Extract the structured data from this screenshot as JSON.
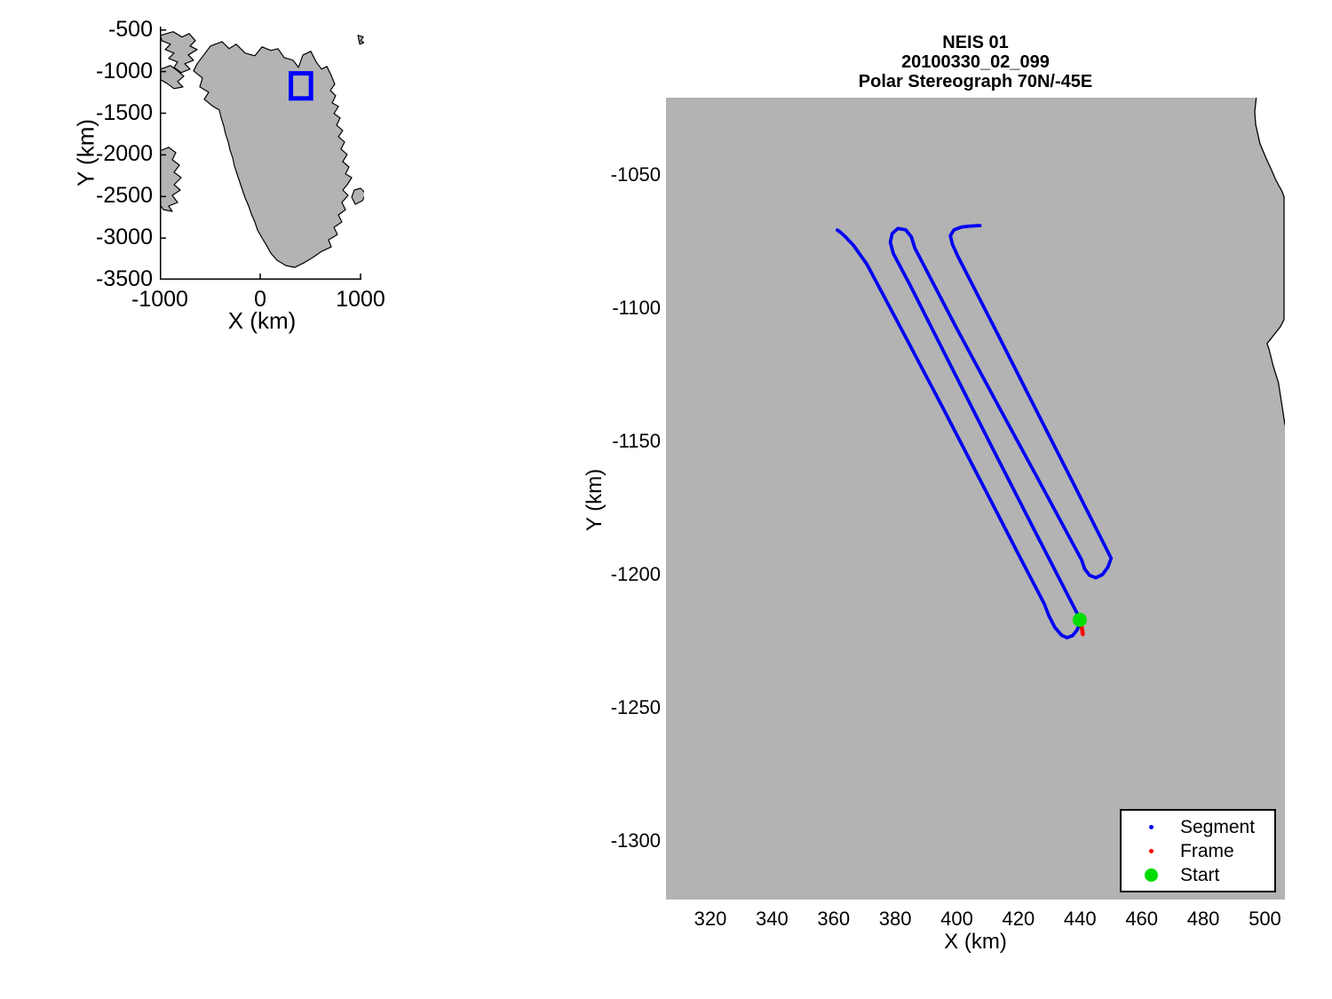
{
  "figure": {
    "background": "#ffffff",
    "land_color": "#b3b3b3",
    "coast_color": "#000000",
    "ocean_color": "#ffffff"
  },
  "chart_data": [
    {
      "type": "line",
      "id": "overview-map",
      "xlabel": "X (km)",
      "ylabel": "Y (km)",
      "xlim": [
        -1000,
        1035
      ],
      "ylim": [
        -3500,
        -460
      ],
      "xticks": [
        -1000,
        0,
        1000
      ],
      "yticks": [
        -500,
        -1000,
        -1500,
        -2000,
        -2500,
        -3000,
        -3500
      ],
      "grid": false,
      "highlight_box": {
        "x": [
          306,
          506
        ],
        "y": [
          -1322,
          -1021
        ],
        "color": "#0000ff",
        "stroke_px": 5
      },
      "land_polygons": {
        "greenland": [
          [
            -495,
            -692
          ],
          [
            -380,
            -640
          ],
          [
            -310,
            -724
          ],
          [
            -239,
            -671
          ],
          [
            -150,
            -778
          ],
          [
            -53,
            -810
          ],
          [
            18,
            -703
          ],
          [
            106,
            -746
          ],
          [
            177,
            -724
          ],
          [
            239,
            -831
          ],
          [
            327,
            -863
          ],
          [
            381,
            -950
          ],
          [
            425,
            -800
          ],
          [
            504,
            -756
          ],
          [
            558,
            -884
          ],
          [
            611,
            -970
          ],
          [
            664,
            -938
          ],
          [
            708,
            -1045
          ],
          [
            743,
            -1152
          ],
          [
            699,
            -1226
          ],
          [
            752,
            -1290
          ],
          [
            717,
            -1376
          ],
          [
            779,
            -1419
          ],
          [
            735,
            -1504
          ],
          [
            796,
            -1557
          ],
          [
            761,
            -1643
          ],
          [
            823,
            -1707
          ],
          [
            779,
            -1782
          ],
          [
            841,
            -1846
          ],
          [
            805,
            -1931
          ],
          [
            867,
            -1995
          ],
          [
            823,
            -2081
          ],
          [
            885,
            -2145
          ],
          [
            850,
            -2230
          ],
          [
            912,
            -2273
          ],
          [
            867,
            -2359
          ],
          [
            823,
            -2423
          ],
          [
            876,
            -2487
          ],
          [
            814,
            -2572
          ],
          [
            850,
            -2658
          ],
          [
            779,
            -2722
          ],
          [
            814,
            -2807
          ],
          [
            735,
            -2871
          ],
          [
            770,
            -2957
          ],
          [
            681,
            -3021
          ],
          [
            708,
            -3106
          ],
          [
            611,
            -3160
          ],
          [
            522,
            -3234
          ],
          [
            434,
            -3298
          ],
          [
            345,
            -3352
          ],
          [
            257,
            -3330
          ],
          [
            168,
            -3266
          ],
          [
            106,
            -3181
          ],
          [
            62,
            -3085
          ],
          [
            18,
            -2999
          ],
          [
            -27,
            -2903
          ],
          [
            -53,
            -2807
          ],
          [
            -88,
            -2711
          ],
          [
            -115,
            -2615
          ],
          [
            -150,
            -2519
          ],
          [
            -177,
            -2423
          ],
          [
            -204,
            -2327
          ],
          [
            -230,
            -2231
          ],
          [
            -257,
            -2134
          ],
          [
            -274,
            -2038
          ],
          [
            -301,
            -1942
          ],
          [
            -319,
            -1846
          ],
          [
            -345,
            -1750
          ],
          [
            -363,
            -1654
          ],
          [
            -389,
            -1557
          ],
          [
            -407,
            -1461
          ],
          [
            -469,
            -1419
          ],
          [
            -558,
            -1333
          ],
          [
            -513,
            -1248
          ],
          [
            -602,
            -1184
          ],
          [
            -575,
            -1077
          ],
          [
            -664,
            -991
          ],
          [
            -628,
            -906
          ],
          [
            -575,
            -820
          ]
        ],
        "canada_north": [
          [
            -991,
            -564
          ],
          [
            -867,
            -521
          ],
          [
            -779,
            -585
          ],
          [
            -708,
            -543
          ],
          [
            -646,
            -628
          ],
          [
            -699,
            -692
          ],
          [
            -628,
            -735
          ],
          [
            -717,
            -799
          ],
          [
            -664,
            -863
          ],
          [
            -752,
            -906
          ],
          [
            -699,
            -970
          ],
          [
            -788,
            -1013
          ],
          [
            -858,
            -949
          ],
          [
            -823,
            -884
          ],
          [
            -912,
            -842
          ],
          [
            -858,
            -778
          ],
          [
            -947,
            -735
          ],
          [
            -894,
            -671
          ],
          [
            -982,
            -628
          ]
        ],
        "canada_mid": [
          [
            -991,
            -970
          ],
          [
            -894,
            -927
          ],
          [
            -823,
            -991
          ],
          [
            -761,
            -1055
          ],
          [
            -823,
            -1119
          ],
          [
            -770,
            -1184
          ],
          [
            -858,
            -1205
          ],
          [
            -929,
            -1141
          ],
          [
            -991,
            -1098
          ]
        ],
        "baffin": [
          [
            -1000,
            -1953
          ],
          [
            -912,
            -1910
          ],
          [
            -841,
            -1974
          ],
          [
            -876,
            -2059
          ],
          [
            -805,
            -2124
          ],
          [
            -858,
            -2209
          ],
          [
            -788,
            -2273
          ],
          [
            -858,
            -2359
          ],
          [
            -796,
            -2423
          ],
          [
            -876,
            -2487
          ],
          [
            -823,
            -2572
          ],
          [
            -912,
            -2615
          ],
          [
            -876,
            -2679
          ],
          [
            -965,
            -2658
          ],
          [
            -1000,
            -2594
          ]
        ],
        "svalbard": [
          [
            974,
            -564
          ],
          [
            1027,
            -585
          ],
          [
            1000,
            -628
          ],
          [
            1035,
            -650
          ],
          [
            992,
            -671
          ]
        ],
        "iceland": [
          [
            912,
            -2509
          ],
          [
            938,
            -2423
          ],
          [
            1000,
            -2401
          ],
          [
            1053,
            -2465
          ],
          [
            1018,
            -2551
          ],
          [
            947,
            -2594
          ]
        ]
      }
    },
    {
      "type": "scatter",
      "id": "flight-track",
      "title_lines": [
        "NEIS 01",
        "20100330_02_099",
        "Polar Stereograph 70N/-45E"
      ],
      "xlabel": "X (km)",
      "ylabel": "Y (km)",
      "xlim": [
        305.6,
        506.5
      ],
      "ylim": [
        -1322,
        -1021
      ],
      "xticks": [
        320,
        340,
        360,
        380,
        400,
        420,
        440,
        460,
        480,
        500
      ],
      "yticks": [
        -1050,
        -1100,
        -1150,
        -1200,
        -1250,
        -1300
      ],
      "grid": false,
      "legend_position": "bottom-right",
      "coastline": [
        [
          497.2,
          -1021
        ],
        [
          496.7,
          -1026.3
        ],
        [
          497.0,
          -1031
        ],
        [
          498.4,
          -1038.3
        ],
        [
          500.4,
          -1043.7
        ],
        [
          502.1,
          -1048
        ],
        [
          503.6,
          -1052
        ],
        [
          505.6,
          -1056.3
        ],
        [
          506.2,
          -1058.3
        ],
        [
          506.2,
          -1104.3
        ],
        [
          505.0,
          -1107
        ],
        [
          500.7,
          -1113.3
        ],
        [
          501.3,
          -1115.3
        ],
        [
          502.7,
          -1121.7
        ],
        [
          504.4,
          -1128
        ],
        [
          506.5,
          -1143.7
        ],
        [
          507.5,
          -1146.5
        ]
      ],
      "series": [
        {
          "name": "Segment",
          "color": "#0000f2",
          "stroke_px": 3.8,
          "legend_marker_px": 5,
          "points": [
            [
              361.2,
              -1070.7
            ],
            [
              362.2,
              -1071.5
            ],
            [
              363.9,
              -1073.3
            ],
            [
              366.5,
              -1076.5
            ],
            [
              370.8,
              -1083.5
            ],
            [
              383.0,
              -1110.0
            ],
            [
              395.5,
              -1137.5
            ],
            [
              408.0,
              -1165.5
            ],
            [
              420.5,
              -1193.5
            ],
            [
              428.4,
              -1211.0
            ],
            [
              429.9,
              -1215.5
            ],
            [
              431.8,
              -1219.8
            ],
            [
              434.0,
              -1222.8
            ],
            [
              435.8,
              -1223.7
            ],
            [
              437.6,
              -1222.9
            ],
            [
              439.0,
              -1220.9
            ],
            [
              439.9,
              -1218.3
            ],
            [
              440.1,
              -1216.9
            ],
            [
              425.9,
              -1185.0
            ],
            [
              412.0,
              -1153.5
            ],
            [
              398.2,
              -1122.0
            ],
            [
              384.9,
              -1091.5
            ],
            [
              379.4,
              -1079.5
            ],
            [
              378.4,
              -1075.3
            ],
            [
              379.0,
              -1072.0
            ],
            [
              380.9,
              -1070.1
            ],
            [
              383.4,
              -1070.6
            ],
            [
              385.2,
              -1073.2
            ],
            [
              386.4,
              -1077.5
            ],
            [
              399.9,
              -1107.5
            ],
            [
              413.4,
              -1136.5
            ],
            [
              427.0,
              -1165.5
            ],
            [
              440.5,
              -1194.5
            ],
            [
              441.5,
              -1197.9
            ],
            [
              443.1,
              -1200.3
            ],
            [
              445.1,
              -1201.2
            ],
            [
              447.3,
              -1200.0
            ],
            [
              449.0,
              -1197.3
            ],
            [
              450.1,
              -1193.9
            ],
            [
              437.7,
              -1165.5
            ],
            [
              425.2,
              -1137.0
            ],
            [
              412.7,
              -1108.5
            ],
            [
              400.3,
              -1080.5
            ],
            [
              398.6,
              -1076.2
            ],
            [
              397.9,
              -1072.8
            ],
            [
              399.1,
              -1070.6
            ],
            [
              401.4,
              -1069.6
            ],
            [
              404.3,
              -1069.2
            ],
            [
              407.5,
              -1069.0
            ]
          ]
        },
        {
          "name": "Frame",
          "color": "#ff0000",
          "stroke_px": 4.5,
          "legend_marker_px": 5,
          "points": [
            [
              440.2,
              -1218.3
            ],
            [
              440.6,
              -1220.3
            ],
            [
              440.9,
              -1222.4
            ]
          ]
        },
        {
          "name": "Start",
          "color": "#00dd00",
          "marker_radius_px": 8,
          "legend_marker_px": 15,
          "points": [
            [
              439.9,
              -1217.0
            ]
          ]
        }
      ]
    }
  ]
}
